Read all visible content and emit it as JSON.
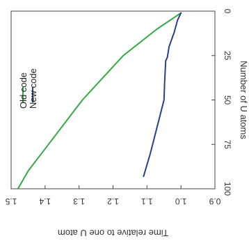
{
  "chart_data": {
    "type": "line",
    "orientation": "rotated-90-clockwise",
    "title": "",
    "xlabel": "Number of U atoms",
    "ylabel": "Time relative to one U atom",
    "xlim": [
      0,
      100
    ],
    "ylim": [
      0.9,
      1.5
    ],
    "x_ticks": [
      "0",
      "25",
      "50",
      "75",
      "100"
    ],
    "y_ticks": [
      "0.9",
      "1.0",
      "1.1",
      "1.2",
      "1.3",
      "1.4",
      "1.5"
    ],
    "grid": false,
    "legend": {
      "position": "top-left",
      "entries": [
        "Old code",
        "New code"
      ]
    },
    "series": [
      {
        "name": "Old code",
        "color": "#33aa44",
        "x": [
          1,
          10,
          25,
          50,
          75,
          90,
          100
        ],
        "y": [
          1.0,
          1.07,
          1.17,
          1.29,
          1.39,
          1.45,
          1.48
        ]
      },
      {
        "name": "New code",
        "color": "#2a3f8f",
        "x": [
          1,
          5,
          12,
          20,
          26,
          28,
          40,
          50,
          65,
          80,
          93
        ],
        "y": [
          1.0,
          1.01,
          1.02,
          1.035,
          1.04,
          1.045,
          1.048,
          1.05,
          1.07,
          1.09,
          1.11
        ]
      }
    ]
  }
}
